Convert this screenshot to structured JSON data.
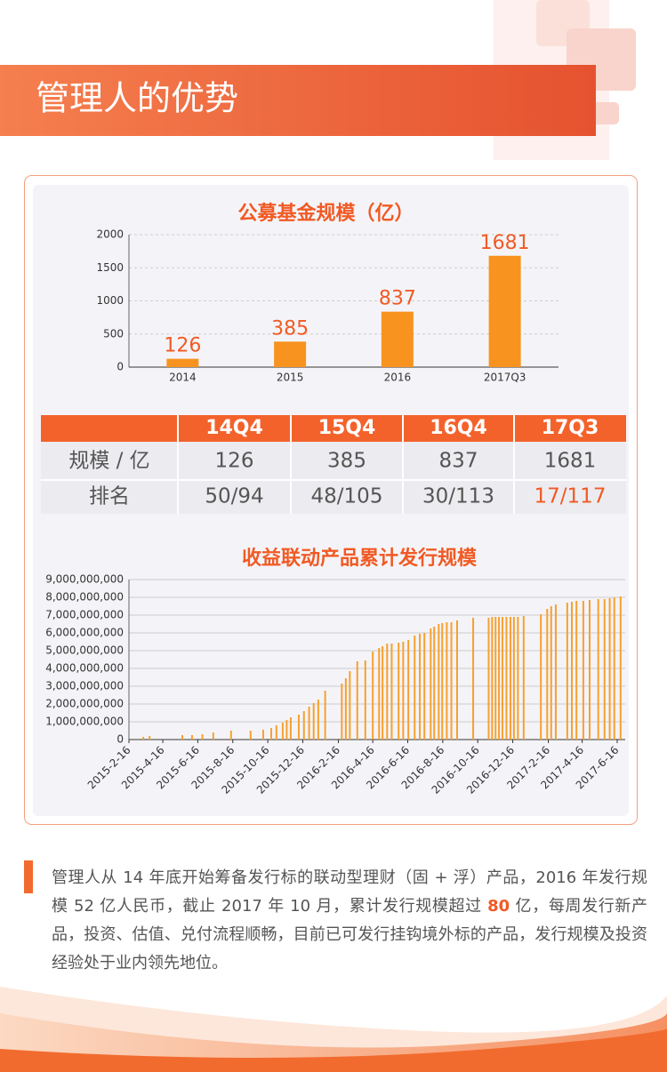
{
  "header": {
    "title": "管理人的优势"
  },
  "chart_data": [
    {
      "type": "bar",
      "title": "公募基金规模（亿）",
      "categories": [
        "2014",
        "2015",
        "2016",
        "2017Q3"
      ],
      "values": [
        126,
        385,
        837,
        1681
      ],
      "color": "#f7931e",
      "label_color": "#f15a24",
      "ylim": [
        0,
        2000
      ],
      "yticks": [
        0,
        500,
        1000,
        1500,
        2000
      ],
      "grid": true
    },
    {
      "type": "bar",
      "title": "收益联动产品累计发行规模",
      "color": "#f7a030",
      "grid": true,
      "x": [
        "2015-3-13",
        "2015-3-24",
        "2015-5-20",
        "2015-6-6",
        "2015-6-24",
        "2015-7-13",
        "2015-8-13",
        "2015-9-16",
        "2015-10-8",
        "2015-10-22",
        "2015-10-31",
        "2015-11-11",
        "2015-11-18",
        "2015-11-25",
        "2015-12-9",
        "2015-12-18",
        "2015-12-27",
        "2016-1-4",
        "2016-1-12",
        "2016-1-24",
        "2016-2-22",
        "2016-2-29",
        "2016-3-7",
        "2016-3-20",
        "2016-4-3",
        "2016-4-16",
        "2016-4-27",
        "2016-5-3",
        "2016-5-11",
        "2016-5-19",
        "2016-5-31",
        "2016-6-8",
        "2016-6-17",
        "2016-6-28",
        "2016-7-7",
        "2016-7-15",
        "2016-7-26",
        "2016-8-1",
        "2016-8-9",
        "2016-8-15",
        "2016-8-23",
        "2016-8-31",
        "2016-9-10",
        "2016-10-8",
        "2016-11-4",
        "2016-11-10",
        "2016-11-16",
        "2016-11-22",
        "2016-11-28",
        "2016-12-5",
        "2016-12-12",
        "2016-12-18",
        "2016-12-25",
        "2017-1-4",
        "2017-2-3",
        "2017-2-14",
        "2017-2-21",
        "2017-3-1",
        "2017-3-21",
        "2017-3-29",
        "2017-4-6",
        "2017-4-18",
        "2017-4-29",
        "2017-5-14",
        "2017-5-25",
        "2017-6-3",
        "2017-6-11",
        "2017-6-22"
      ],
      "values": [
        150000000,
        200000000,
        250000000,
        250000000,
        300000000,
        400000000,
        500000000,
        500000000,
        550000000,
        650000000,
        800000000,
        950000000,
        1100000000,
        1250000000,
        1400000000,
        1600000000,
        1850000000,
        2050000000,
        2250000000,
        2750000000,
        3150000000,
        3450000000,
        3850000000,
        4400000000,
        4450000000,
        4950000000,
        5150000000,
        5250000000,
        5400000000,
        5400000000,
        5450000000,
        5500000000,
        5600000000,
        5850000000,
        5950000000,
        6000000000,
        6250000000,
        6350000000,
        6500000000,
        6550000000,
        6600000000,
        6600000000,
        6700000000,
        6850000000,
        6850000000,
        6900000000,
        6900000000,
        6900000000,
        6900000000,
        6900000000,
        6900000000,
        6900000000,
        6900000000,
        6950000000,
        7050000000,
        7350000000,
        7500000000,
        7600000000,
        7700000000,
        7750000000,
        7800000000,
        7800000000,
        7850000000,
        7900000000,
        7900000000,
        7950000000,
        8000000000,
        8050000000
      ],
      "xlim": [
        "2015-2-16",
        "2017-6-30"
      ],
      "xticks": [
        "2015-2-16",
        "2015-4-16",
        "2015-6-16",
        "2015-8-16",
        "2015-10-16",
        "2015-12-16",
        "2016-2-16",
        "2016-4-16",
        "2016-6-16",
        "2016-8-16",
        "2016-10-16",
        "2016-12-16",
        "2017-2-16",
        "2017-4-16",
        "2017-6-16"
      ],
      "ylim": [
        0,
        9000000000
      ],
      "yticks": [
        0,
        {
          "value": 1000000000,
          "label": "1,000,000,000"
        },
        {
          "value": 2000000000,
          "label": "2,000,000,000"
        },
        {
          "value": 3000000000,
          "label": "3,000,000,000"
        },
        {
          "value": 4000000000,
          "label": "4,000,000,000"
        },
        {
          "value": 5000000000,
          "label": "5,000,000,000"
        },
        {
          "value": 6000000000,
          "label": "6,000,000,000"
        },
        {
          "value": 7000000000,
          "label": "7,000,000,000"
        },
        {
          "value": 8000000000,
          "label": "8,000,000,000"
        },
        {
          "value": 9000000000,
          "label": "9,000,000,000"
        }
      ]
    }
  ],
  "table": {
    "columns": [
      "14Q4",
      "15Q4",
      "16Q4",
      "17Q3"
    ],
    "rows": [
      [
        "规模 / 亿",
        126,
        385,
        837,
        1681
      ],
      [
        "排名",
        "50/94",
        "48/105",
        "30/113",
        "17/117"
      ]
    ]
  },
  "paragraph": {
    "parts": [
      "管理人从 14 年底开始筹备发行标的联动型理财（固 + 浮）产品，2016 年发行规模 52 亿人民币，截止 2017 年 10 月，累计发行规模超过 ",
      "80",
      " 亿，每周发行新产品，投资、估值、兑付流程顺畅，目前已可发行挂钩境外标的产品，发行规模及投资经验处于业内领先地位。"
    ]
  }
}
